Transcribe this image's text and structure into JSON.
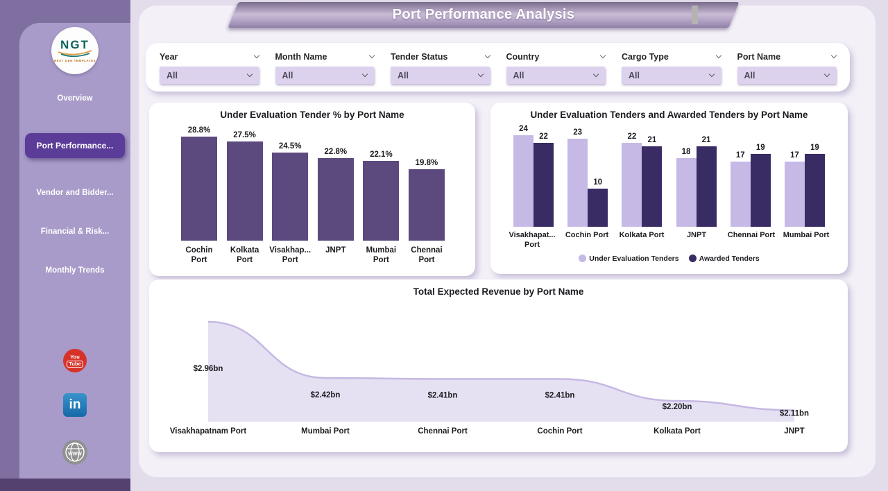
{
  "header": {
    "title": "Port Performance Analysis"
  },
  "sidebar": {
    "logo_text": "NGT",
    "logo_subtext": "NEXT GEN TEMPLATES",
    "items": [
      {
        "label": "Overview",
        "active": false
      },
      {
        "label": "Port Performance...",
        "active": true
      },
      {
        "label": "Vendor and Bidder...",
        "active": false
      },
      {
        "label": "Financial & Risk...",
        "active": false
      },
      {
        "label": "Monthly Trends",
        "active": false
      }
    ],
    "social": [
      {
        "name": "youtube",
        "line1": "You",
        "line2": "Tube"
      },
      {
        "name": "linkedin",
        "text": "in"
      },
      {
        "name": "website",
        "text": "www"
      }
    ]
  },
  "filters": [
    {
      "label": "Year",
      "value": "All"
    },
    {
      "label": "Month Name",
      "value": "All"
    },
    {
      "label": "Tender Status",
      "value": "All"
    },
    {
      "label": "Country",
      "value": "All"
    },
    {
      "label": "Cargo Type",
      "value": "All"
    },
    {
      "label": "Port Name",
      "value": "All"
    }
  ],
  "colors": {
    "accent": "#5b3d99",
    "sidebar_outer": "#7f6fa1",
    "sidebar_inner": "#a89bc9",
    "bar_purple": "#5C4A7E",
    "series_light": "#C7B9E6",
    "series_dark": "#392B63",
    "area_fill": "#E6E0F3",
    "area_line": "#C6B8E2"
  },
  "chart_data": [
    {
      "type": "bar",
      "title": "Under Evaluation Tender % by Port Name",
      "categories": [
        "Cochin Port",
        "Kolkata Port",
        "Visakhap... Port",
        "JNPT",
        "Mumbai Port",
        "Chennai Port"
      ],
      "values": [
        28.8,
        27.5,
        24.5,
        22.8,
        22.1,
        19.8
      ],
      "data_labels": [
        "28.8%",
        "27.5%",
        "24.5%",
        "22.8%",
        "22.1%",
        "19.8%"
      ],
      "bar_color": "#5C4A7E",
      "xlabel": "",
      "ylabel": "",
      "ylim": [
        0,
        30
      ],
      "grid": false,
      "legend": false
    },
    {
      "type": "bar",
      "title": "Under Evaluation Tenders and Awarded Tenders by Port Name",
      "categories": [
        "Visakhapat... Port",
        "Cochin Port",
        "Kolkata Port",
        "JNPT",
        "Chennai Port",
        "Mumbai Port"
      ],
      "series": [
        {
          "name": "Under Evaluation Tenders",
          "color": "#C7B9E6",
          "values": [
            24,
            23,
            22,
            18,
            17,
            17
          ]
        },
        {
          "name": "Awarded Tenders",
          "color": "#392B63",
          "values": [
            22,
            10,
            21,
            21,
            19,
            19
          ]
        }
      ],
      "xlabel": "",
      "ylabel": "",
      "ylim": [
        0,
        26
      ],
      "grid": false,
      "legend_position": "bottom"
    },
    {
      "type": "area",
      "title": "Total Expected Revenue by Port Name",
      "categories": [
        "Visakhapatnam Port",
        "Mumbai Port",
        "Chennai Port",
        "Cochin Port",
        "Kolkata Port",
        "JNPT"
      ],
      "values": [
        2.96,
        2.42,
        2.41,
        2.41,
        2.2,
        2.11
      ],
      "data_labels": [
        "$2.96bn",
        "$2.42bn",
        "$2.41bn",
        "$2.41bn",
        "$2.20bn",
        "$2.11bn"
      ],
      "fill_color": "#E6E0F3",
      "line_color": "#C6B8E2",
      "xlabel": "",
      "ylabel": "",
      "ylim": [
        2.0,
        3.1
      ],
      "grid": false,
      "legend": false
    }
  ]
}
